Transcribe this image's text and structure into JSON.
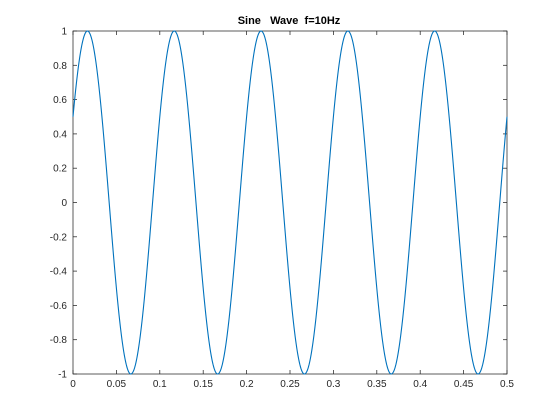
{
  "chart_data": {
    "type": "line",
    "title": "Sine   Wave  f=10Hz",
    "xlabel": "",
    "ylabel": "",
    "xlim": [
      0,
      0.5
    ],
    "ylim": [
      -1,
      1
    ],
    "xticks": [
      0,
      0.05,
      0.1,
      0.15,
      0.2,
      0.25,
      0.3,
      0.35,
      0.4,
      0.45,
      0.5
    ],
    "xtick_labels": [
      "0",
      "0.05",
      "0.1",
      "0.15",
      "0.2",
      "0.25",
      "0.3",
      "0.35",
      "0.4",
      "0.45",
      "0.5"
    ],
    "yticks": [
      -1,
      -0.8,
      -0.6,
      -0.4,
      -0.2,
      0,
      0.2,
      0.4,
      0.6,
      0.8,
      1
    ],
    "ytick_labels": [
      "-1",
      "-0.8",
      "-0.6",
      "-0.4",
      "-0.2",
      "0",
      "0.2",
      "0.4",
      "0.6",
      "0.8",
      "1"
    ],
    "grid": false,
    "legend": "none",
    "series": [
      {
        "function": "sin(2*pi*10*t + pi/6)",
        "frequency_hz": 10,
        "amplitude": 1,
        "phase_rad": 0.5236,
        "t_range": [
          0,
          0.5
        ],
        "color": "#0072BD"
      }
    ]
  }
}
